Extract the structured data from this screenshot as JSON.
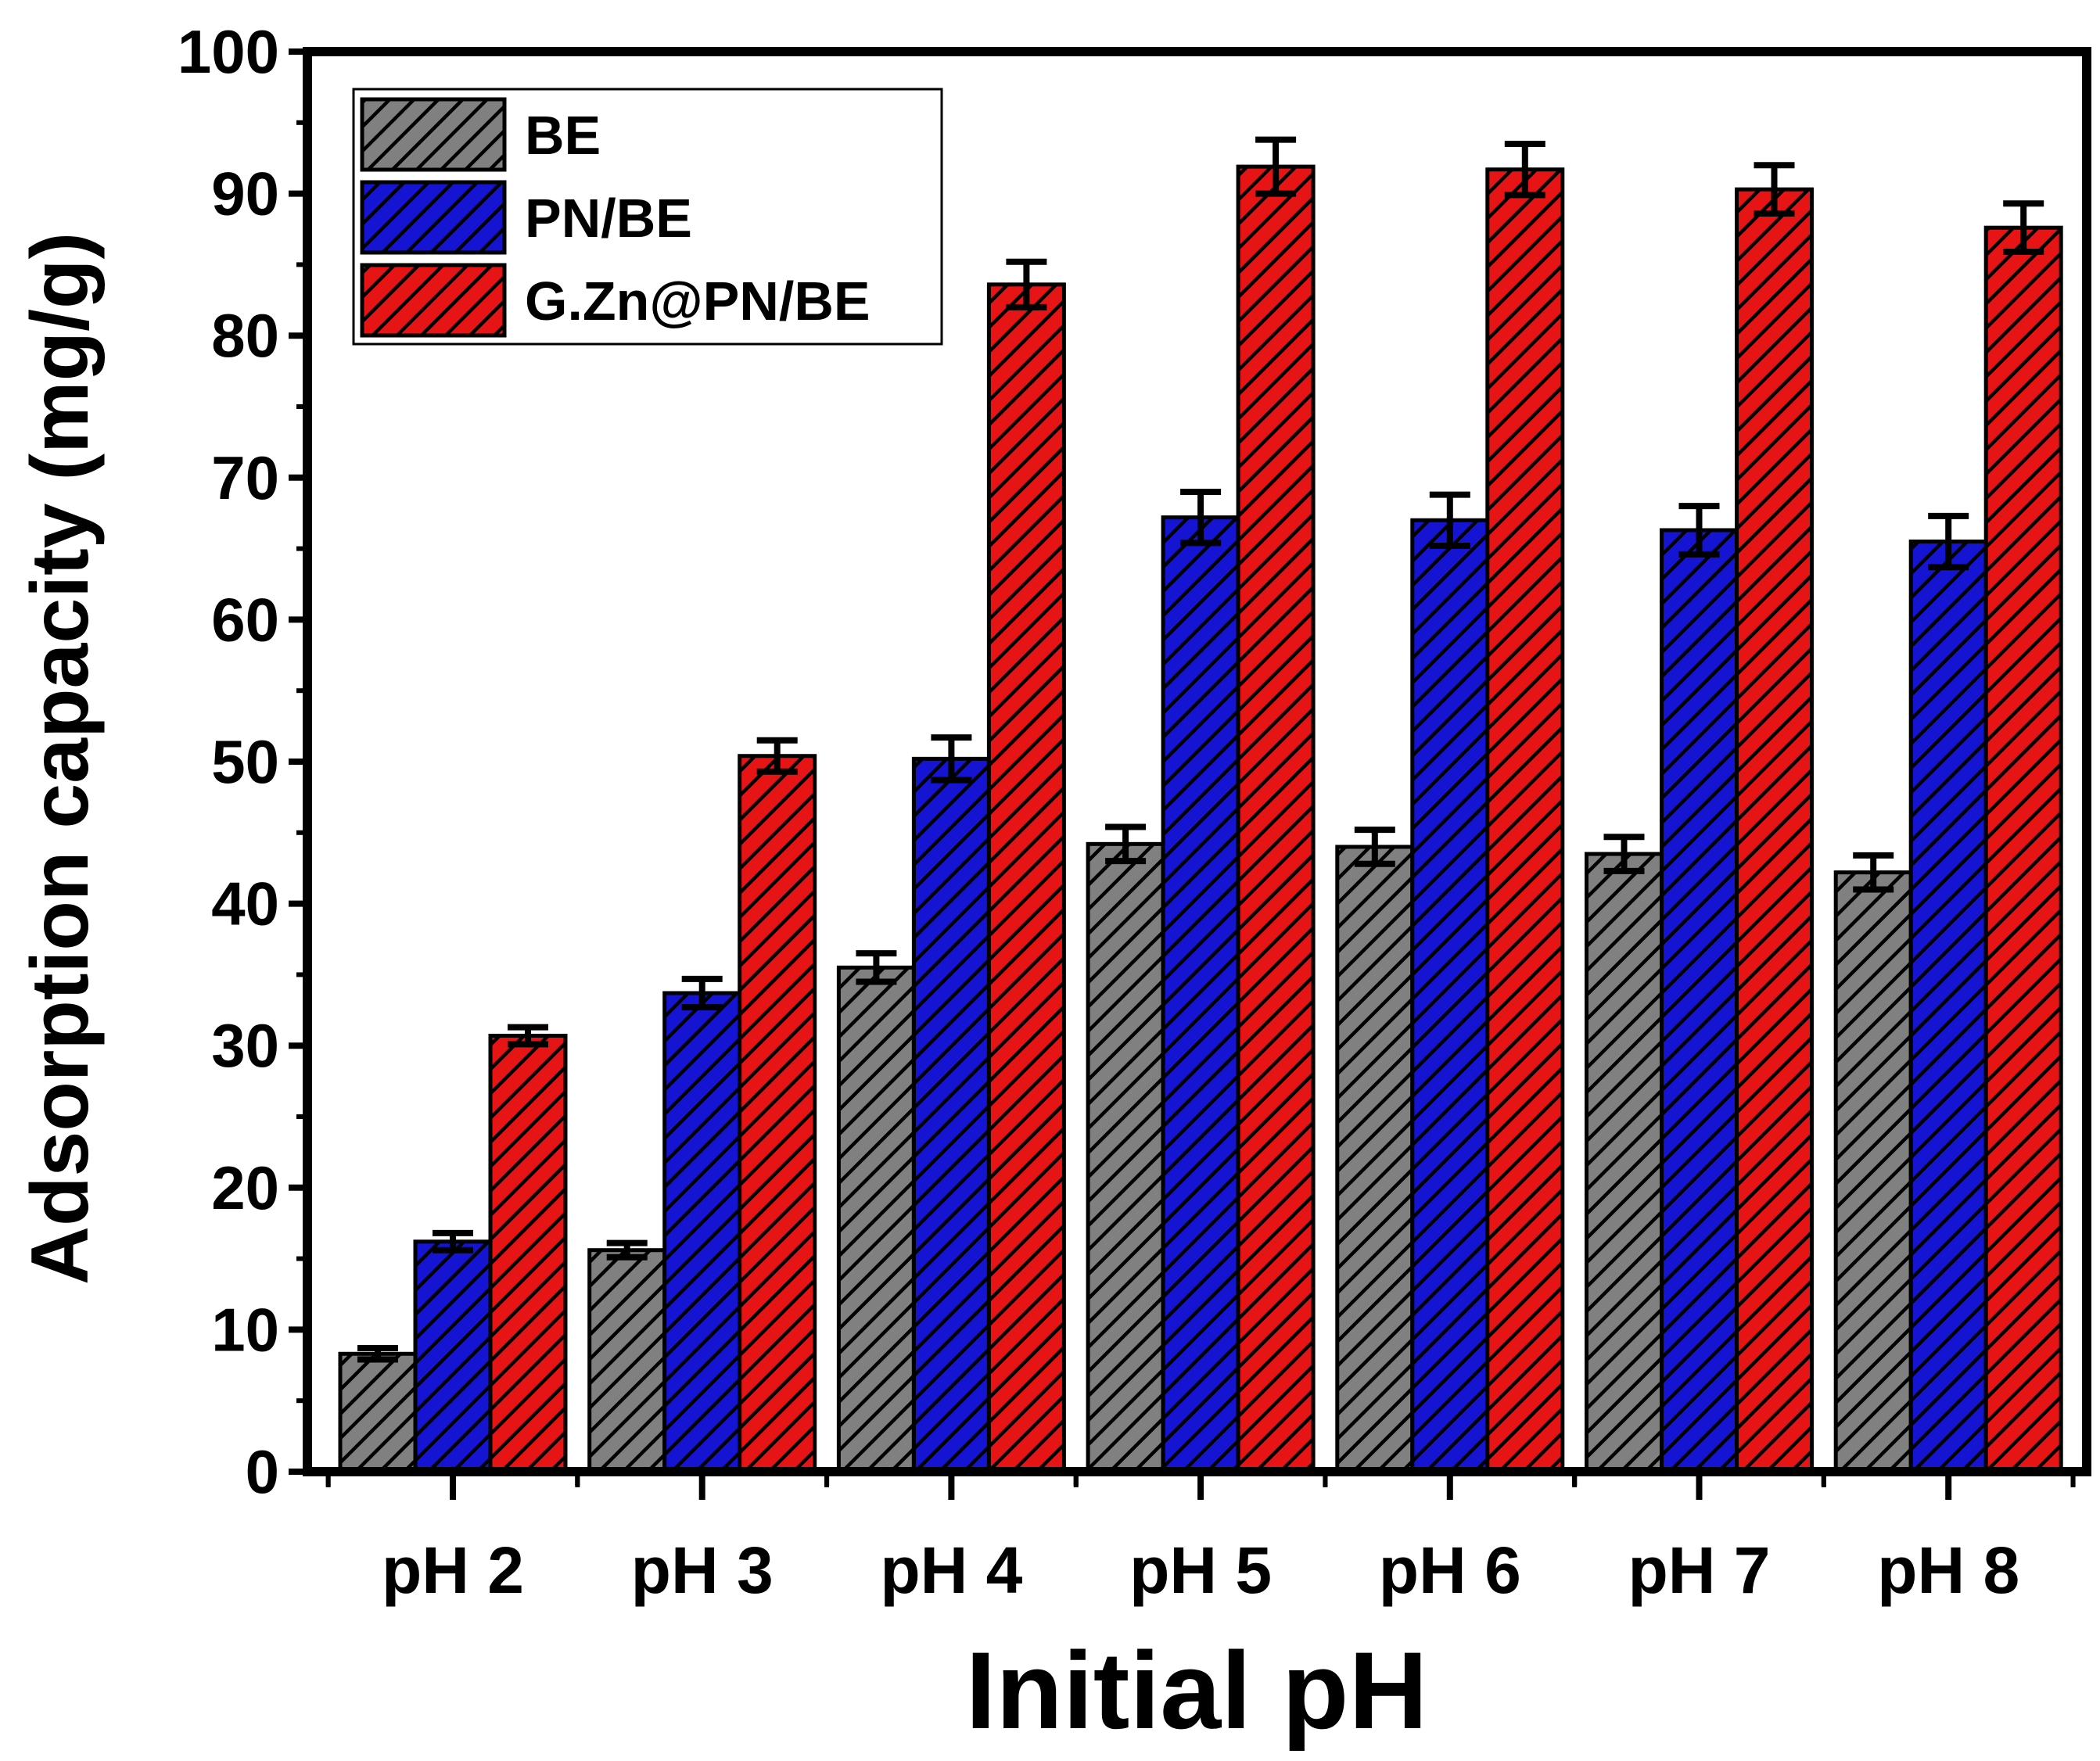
{
  "chart_data": {
    "type": "bar",
    "title": "",
    "xlabel": "Initial pH",
    "ylabel": "Adsorption capacity (mg/g)",
    "ylim": [
      0,
      100
    ],
    "yticks": [
      0,
      10,
      20,
      30,
      40,
      50,
      60,
      70,
      80,
      90,
      100
    ],
    "categories": [
      "pH 2",
      "pH 3",
      "pH 4",
      "pH 5",
      "pH 6",
      "pH 7",
      "pH 8"
    ],
    "legend_position": "top-left",
    "series": [
      {
        "name": "BE",
        "color": "#808080",
        "values": [
          8.3,
          15.6,
          35.5,
          44.2,
          44.0,
          43.5,
          42.2
        ],
        "errors": [
          0.4,
          0.5,
          1.0,
          1.2,
          1.2,
          1.2,
          1.2
        ]
      },
      {
        "name": "PN/BE",
        "color": "#1414d2",
        "values": [
          16.2,
          33.7,
          50.2,
          67.2,
          67.0,
          66.3,
          65.5
        ],
        "errors": [
          0.6,
          1.0,
          1.5,
          1.8,
          1.8,
          1.7,
          1.8
        ]
      },
      {
        "name": "G.Zn@PN/BE",
        "color": "#e61414",
        "values": [
          30.7,
          50.4,
          83.6,
          91.9,
          91.7,
          90.3,
          87.6
        ],
        "errors": [
          0.6,
          1.1,
          1.6,
          1.9,
          1.8,
          1.7,
          1.7
        ]
      }
    ]
  }
}
